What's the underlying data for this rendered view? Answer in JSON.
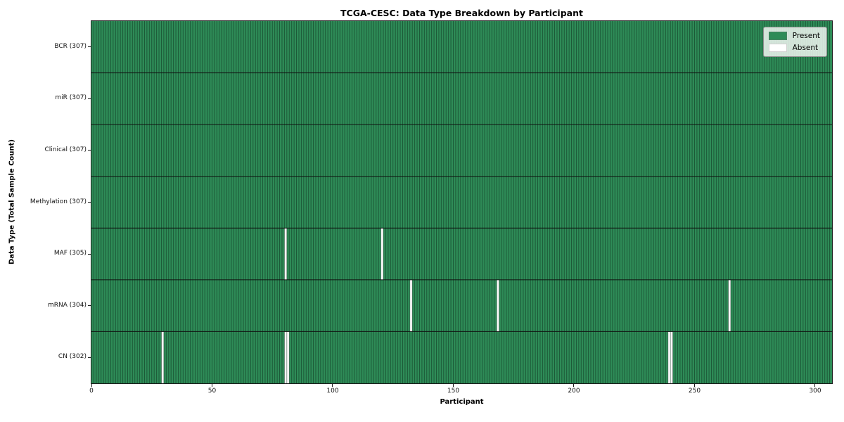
{
  "figure": {
    "title": "TCGA-CESC: Data Type Breakdown by Participant",
    "xlabel": "Participant",
    "ylabel": "Data Type (Total Sample Count)"
  },
  "colors": {
    "present": "#2e8b57",
    "absent": "#ffffff",
    "column_gridline": "rgba(8,32,20,0.5)",
    "row_divider": "rgba(15,15,15,0.85)",
    "plot_border": "#1a1a1a",
    "legend_background": "rgba(248,250,248,0.82)"
  },
  "chart_data": {
    "type": "heatmap",
    "title": "TCGA-CESC: Data Type Breakdown by Participant",
    "xlabel": "Participant",
    "ylabel": "Data Type (Total Sample Count)",
    "n_participants": 307,
    "x_range": [
      0,
      307
    ],
    "x_ticks": [
      0,
      50,
      100,
      150,
      200,
      250,
      300
    ],
    "grid": true,
    "legend_position": "upper right",
    "cell_states": {
      "present": 1,
      "absent": 0
    },
    "rows": [
      {
        "label": "BCR (307)",
        "data_type": "BCR",
        "total": 307,
        "absent_participants": []
      },
      {
        "label": "miR (307)",
        "data_type": "miR",
        "total": 307,
        "absent_participants": []
      },
      {
        "label": "Clinical (307)",
        "data_type": "Clinical",
        "total": 307,
        "absent_participants": []
      },
      {
        "label": "Methylation (307)",
        "data_type": "Methylation",
        "total": 307,
        "absent_participants": []
      },
      {
        "label": "MAF (305)",
        "data_type": "MAF",
        "total": 305,
        "absent_participants": [
          80,
          120
        ]
      },
      {
        "label": "mRNA (304)",
        "data_type": "mRNA",
        "total": 304,
        "absent_participants": [
          132,
          168,
          264
        ]
      },
      {
        "label": "CN (302)",
        "data_type": "CN",
        "total": 302,
        "absent_participants": [
          29,
          80,
          81,
          239,
          240
        ]
      }
    ],
    "legend": [
      {
        "label": "Present",
        "color": "#2e8b57"
      },
      {
        "label": "Absent",
        "color": "#ffffff"
      }
    ]
  }
}
